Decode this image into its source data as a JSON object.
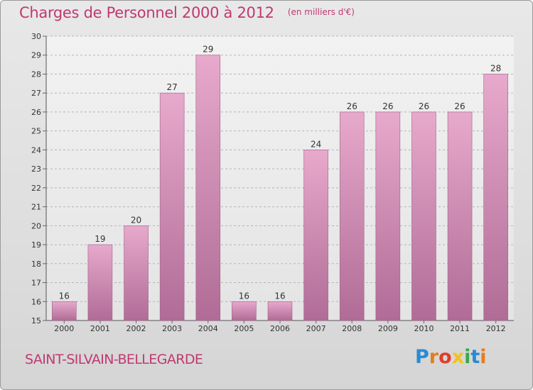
{
  "title": {
    "main": "Charges de Personnel 2000 à 2012",
    "unit": "(en milliers d'€)"
  },
  "city": "SAINT-SILVAIN-BELLEGARDE",
  "logo": {
    "letters": [
      "P",
      "r",
      "o",
      "x",
      "i",
      "t",
      "i"
    ]
  },
  "colors": {
    "title": "#c0396f",
    "bar_top": "#e7a9cc",
    "bar_bottom": "#b06c96",
    "axis": "#555555"
  },
  "chart_data": {
    "type": "bar",
    "categories": [
      "2000",
      "2001",
      "2002",
      "2003",
      "2004",
      "2005",
      "2006",
      "2007",
      "2008",
      "2009",
      "2010",
      "2011",
      "2012"
    ],
    "values": [
      16,
      19,
      20,
      27,
      29,
      16,
      16,
      24,
      26,
      26,
      26,
      26,
      28
    ],
    "title": "Charges de Personnel 2000 à 2012",
    "xlabel": "",
    "ylabel": "",
    "ylim": [
      15,
      30
    ],
    "yticks": [
      15,
      16,
      17,
      18,
      19,
      20,
      21,
      22,
      23,
      24,
      25,
      26,
      27,
      28,
      29,
      30
    ],
    "grid": true,
    "data_labels": true
  }
}
